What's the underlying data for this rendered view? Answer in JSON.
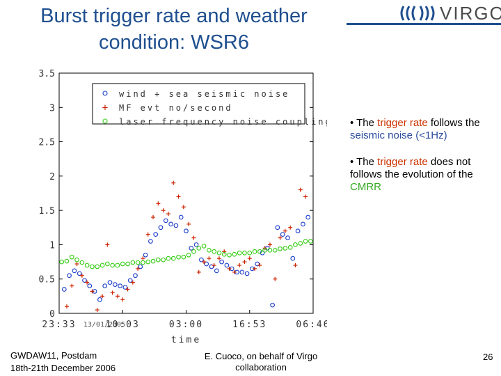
{
  "title": "Burst trigger rate and weather condition: WSR6",
  "logo": {
    "name": "virgo-logo",
    "text": "VIRGO"
  },
  "bullets": [
    {
      "parts": [
        "• The ",
        "trigger rate",
        " follows the ",
        "seismic noise",
        " (<1Hz)"
      ]
    },
    {
      "parts": [
        "• The ",
        "trigger rate",
        " does not follows the evolution of the ",
        "CMRR"
      ]
    }
  ],
  "colors": {
    "title": "#1f4f8f",
    "trigger": "#cc2200",
    "seismic": "#1a3cc8",
    "laser": "#33cc11"
  },
  "footer": {
    "left_line1": "GWDAW11,  Postdam",
    "left_line2": "18th-21th December 2006",
    "mid_line1": "E. Cuoco, on behalf of Virgo",
    "mid_line2": "collaboration",
    "page": "26"
  },
  "chart_data": {
    "type": "scatter",
    "xlabel": "time",
    "x_tick_labels": [
      "23:33 ",
      "10:03",
      "03:00",
      "16:53",
      "06:46"
    ],
    "x_overlay_label": "13/01/2005",
    "ylim": [
      0,
      3.5
    ],
    "y_ticks": [
      "0",
      "0.5",
      "1",
      "1.5",
      "2",
      "2.5",
      "3",
      "3.5"
    ],
    "legend": [
      {
        "marker": "o",
        "color": "#1a3cc8",
        "label": "wind + sea seismic noise"
      },
      {
        "marker": "+",
        "color": "#cc2200",
        "label": "MF evt no/second"
      },
      {
        "marker": "o",
        "color": "#33cc11",
        "label": "laser frequency noise coupling"
      }
    ],
    "series": [
      {
        "name": "wind + sea seismic noise",
        "marker": "o",
        "color": "#1a3cc8",
        "x": [
          0.02,
          0.04,
          0.06,
          0.08,
          0.1,
          0.12,
          0.14,
          0.16,
          0.18,
          0.2,
          0.22,
          0.24,
          0.26,
          0.28,
          0.3,
          0.32,
          0.34,
          0.36,
          0.38,
          0.4,
          0.42,
          0.44,
          0.46,
          0.48,
          0.5,
          0.52,
          0.54,
          0.56,
          0.58,
          0.6,
          0.62,
          0.64,
          0.66,
          0.68,
          0.7,
          0.72,
          0.74,
          0.76,
          0.78,
          0.8,
          0.82,
          0.84,
          0.86,
          0.88,
          0.9,
          0.92,
          0.94,
          0.96,
          0.98
        ],
        "y": [
          0.35,
          0.55,
          0.62,
          0.58,
          0.48,
          0.4,
          0.32,
          0.2,
          0.4,
          0.45,
          0.42,
          0.4,
          0.38,
          0.48,
          0.55,
          0.68,
          0.85,
          1.05,
          1.15,
          1.25,
          1.35,
          1.3,
          1.28,
          1.4,
          1.2,
          0.95,
          1.0,
          0.78,
          0.72,
          0.68,
          0.62,
          0.75,
          0.7,
          0.65,
          0.6,
          0.6,
          0.58,
          0.65,
          0.72,
          0.88,
          0.95,
          0.12,
          1.25,
          1.15,
          1.1,
          0.8,
          1.2,
          1.3,
          1.4
        ]
      },
      {
        "name": "MF evt no/second",
        "marker": "+",
        "color": "#cc2200",
        "x": [
          0.03,
          0.05,
          0.07,
          0.09,
          0.11,
          0.13,
          0.15,
          0.17,
          0.19,
          0.21,
          0.23,
          0.25,
          0.27,
          0.29,
          0.31,
          0.33,
          0.35,
          0.37,
          0.39,
          0.41,
          0.43,
          0.45,
          0.47,
          0.49,
          0.51,
          0.53,
          0.55,
          0.57,
          0.59,
          0.61,
          0.63,
          0.65,
          0.67,
          0.69,
          0.71,
          0.73,
          0.75,
          0.77,
          0.79,
          0.81,
          0.83,
          0.85,
          0.87,
          0.89,
          0.91,
          0.93,
          0.95,
          0.97
        ],
        "y": [
          0.1,
          0.4,
          0.72,
          0.55,
          0.45,
          0.32,
          0.05,
          0.25,
          1.0,
          0.3,
          0.25,
          0.2,
          0.35,
          0.45,
          0.65,
          0.8,
          1.15,
          1.4,
          1.6,
          1.5,
          1.45,
          1.9,
          1.7,
          1.55,
          1.3,
          1.1,
          0.6,
          0.75,
          0.8,
          0.7,
          0.8,
          0.9,
          0.65,
          0.6,
          0.7,
          0.75,
          0.8,
          0.65,
          0.7,
          0.95,
          1.0,
          0.5,
          1.1,
          1.2,
          1.25,
          0.7,
          1.8,
          1.7
        ]
      },
      {
        "name": "laser frequency noise coupling",
        "marker": "o",
        "color": "#33cc11",
        "x": [
          0.01,
          0.03,
          0.05,
          0.07,
          0.09,
          0.11,
          0.13,
          0.15,
          0.17,
          0.19,
          0.21,
          0.23,
          0.25,
          0.27,
          0.29,
          0.31,
          0.33,
          0.35,
          0.37,
          0.39,
          0.41,
          0.43,
          0.45,
          0.47,
          0.49,
          0.51,
          0.53,
          0.55,
          0.57,
          0.59,
          0.61,
          0.63,
          0.65,
          0.67,
          0.69,
          0.71,
          0.73,
          0.75,
          0.77,
          0.79,
          0.81,
          0.83,
          0.85,
          0.87,
          0.89,
          0.91,
          0.93,
          0.95,
          0.97,
          0.99
        ],
        "y": [
          0.75,
          0.76,
          0.82,
          0.78,
          0.74,
          0.7,
          0.68,
          0.68,
          0.7,
          0.72,
          0.7,
          0.7,
          0.72,
          0.72,
          0.74,
          0.74,
          0.74,
          0.75,
          0.76,
          0.78,
          0.78,
          0.8,
          0.8,
          0.82,
          0.82,
          0.85,
          0.9,
          0.95,
          0.98,
          0.92,
          0.9,
          0.88,
          0.86,
          0.85,
          0.86,
          0.88,
          0.88,
          0.88,
          0.9,
          0.9,
          0.92,
          0.92,
          0.92,
          0.94,
          0.95,
          0.96,
          1.0,
          1.02,
          1.05,
          1.05
        ]
      }
    ]
  }
}
